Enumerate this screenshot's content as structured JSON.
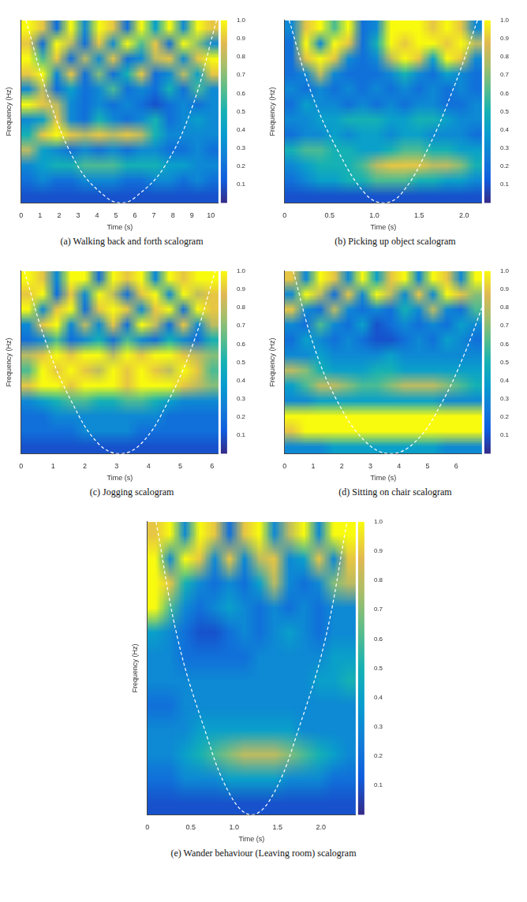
{
  "chart_data": [
    {
      "type": "heatmap",
      "caption": "(a) Walking back and forth scalogram",
      "x_label": "Time (s)",
      "y_label": "Frequency (Hz)",
      "xlim": [
        0,
        10.4
      ],
      "xticks": [
        0,
        1,
        2,
        3,
        4,
        5,
        6,
        7,
        8,
        9,
        10
      ],
      "ylim": [
        0,
        1
      ],
      "tick_labels": "x",
      "cells": [
        [
          1,
          0.9,
          0.2,
          1,
          0.3,
          1,
          0.9,
          0.2,
          1,
          0.4,
          1,
          0.3,
          1,
          0.9
        ],
        [
          0.9,
          0.2,
          1,
          0.8,
          0.2,
          0.9,
          0.3,
          1,
          0.6,
          0.9,
          0.2,
          1,
          0.7,
          0.3
        ],
        [
          1,
          0.6,
          0.9,
          0.2,
          0.8,
          0.3,
          0.9,
          0.2,
          0.3,
          0.8,
          0.9,
          0.3,
          0.9,
          1
        ],
        [
          0.9,
          1,
          0.3,
          0.9,
          0.2,
          0.7,
          0.2,
          0.5,
          0.9,
          0.2,
          0.3,
          0.8,
          0.4,
          0.9
        ],
        [
          0.3,
          0.8,
          0.2,
          0.4,
          0.2,
          0.3,
          0.6,
          0.2,
          0.3,
          0.2,
          0.5,
          0.2,
          0.6,
          0.3
        ],
        [
          1,
          0.9,
          0.8,
          0.3,
          0.2,
          0.3,
          0.2,
          0.3,
          0.2,
          0.1,
          0.2,
          0.3,
          0.2,
          0.3
        ],
        [
          0.3,
          0.4,
          0.9,
          0.3,
          0.2,
          0.5,
          0.3,
          0.2,
          0.3,
          0.5,
          0.2,
          0.3,
          0.4,
          0.3
        ],
        [
          0.5,
          0.9,
          1,
          0.9,
          0.8,
          0.9,
          0.8,
          0.9,
          0.8,
          0.5,
          0.3,
          0.3,
          0.3,
          0.3
        ],
        [
          0.8,
          0.4,
          0.3,
          0.2,
          0.3,
          0.2,
          0.3,
          0.2,
          0.3,
          0.3,
          0.2,
          0.2,
          0.3,
          0.2
        ],
        [
          0.3,
          0.4,
          0.5,
          0.5,
          0.6,
          0.6,
          0.6,
          0.5,
          0.5,
          0.5,
          0.4,
          0.4,
          0.3,
          0.3
        ],
        [
          0.2,
          0.3,
          0.2,
          0.2,
          0.3,
          0.3,
          0.3,
          0.2,
          0.2,
          0.3,
          0.3,
          0.2,
          0.3,
          0.2
        ],
        [
          0.1,
          0.1,
          0.1,
          0.1,
          0.1,
          0.1,
          0.1,
          0.1,
          0.1,
          0.1,
          0.1,
          0.1,
          0.1,
          0.1
        ]
      ],
      "colorbar": {
        "range": [
          0,
          1
        ],
        "ticks": [
          0.1,
          0.2,
          0.3,
          0.4,
          0.5,
          0.6,
          0.7,
          0.8,
          0.9,
          1
        ]
      },
      "coi": {
        "x": [
          0.25,
          1.5,
          3,
          4.5,
          5.3,
          6,
          7.5,
          9,
          10.3
        ],
        "y": [
          1,
          0.56,
          0.2,
          0.03,
          0,
          0.03,
          0.19,
          0.52,
          1
        ],
        "color": "#ffffff",
        "line_style": "dashed"
      }
    },
    {
      "type": "heatmap",
      "caption": "(b) Picking up object scalogram",
      "x_label": "Time (s)",
      "y_label": "Frequency (Hz)",
      "xlim": [
        0,
        2.2
      ],
      "xticks": [
        0,
        0.5,
        1,
        1.5,
        2
      ],
      "ylim": [
        0,
        1
      ],
      "tick_labels": "x",
      "cells": [
        [
          0.3,
          0.9,
          1,
          0.6,
          1,
          0.2,
          0.3,
          1,
          1,
          1,
          0.9,
          1,
          0.9,
          0.3
        ],
        [
          0.2,
          1,
          0.3,
          1,
          0.9,
          0.2,
          0.5,
          1,
          0.9,
          1,
          1,
          0.9,
          1,
          0.8
        ],
        [
          0.2,
          0.9,
          1,
          0.9,
          0.3,
          0.2,
          0.3,
          0.8,
          1,
          0.9,
          0.4,
          1,
          0.9,
          0.3
        ],
        [
          0.2,
          0.3,
          0.8,
          0.3,
          0.2,
          0.2,
          0.2,
          0.3,
          0.5,
          0.3,
          0.2,
          0.4,
          0.3,
          0.2
        ],
        [
          0.3,
          0.2,
          0.3,
          0.2,
          0.3,
          0.2,
          0.3,
          0.2,
          0.3,
          0.2,
          0.3,
          0.2,
          0.3,
          0.2
        ],
        [
          0.2,
          0.4,
          0.3,
          0.3,
          0.2,
          0.3,
          0.2,
          0.3,
          0.2,
          0.3,
          0.3,
          0.2,
          0.2,
          0.3
        ],
        [
          0.3,
          0.3,
          0.4,
          0.4,
          0.5,
          0.5,
          0.5,
          0.4,
          0.4,
          0.5,
          0.5,
          0.4,
          0.3,
          0.3
        ],
        [
          0.2,
          0.3,
          0.3,
          0.4,
          0.3,
          0.4,
          0.4,
          0.3,
          0.4,
          0.4,
          0.3,
          0.3,
          0.3,
          0.2
        ],
        [
          0.5,
          0.6,
          0.6,
          0.5,
          0.5,
          0.4,
          0.4,
          0.5,
          0.6,
          0.6,
          0.5,
          0.5,
          0.4,
          0.4
        ],
        [
          0.3,
          0.4,
          0.5,
          0.5,
          0.5,
          0.6,
          0.8,
          0.9,
          0.9,
          0.9,
          0.8,
          0.8,
          0.7,
          0.5
        ],
        [
          0.2,
          0.3,
          0.4,
          0.4,
          0.5,
          0.5,
          0.6,
          0.6,
          0.6,
          0.5,
          0.5,
          0.4,
          0.4,
          0.3
        ],
        [
          0.1,
          0.1,
          0.1,
          0.1,
          0.1,
          0.1,
          0.1,
          0.1,
          0.1,
          0.1,
          0.1,
          0.1,
          0.1,
          0.1
        ]
      ],
      "colorbar": {
        "range": [
          0,
          1
        ],
        "ticks": [
          0.1,
          0.2,
          0.3,
          0.4,
          0.5,
          0.6,
          0.7,
          0.8,
          0.9,
          1
        ]
      },
      "coi": {
        "x": [
          0.05,
          0.3,
          0.6,
          0.9,
          1.1,
          1.3,
          1.6,
          1.9,
          2.15
        ],
        "y": [
          1,
          0.6,
          0.28,
          0.05,
          0,
          0.05,
          0.3,
          0.65,
          1
        ],
        "color": "#ffffff",
        "line_style": "dashed"
      }
    },
    {
      "type": "heatmap",
      "caption": "(c) Jogging scalogram",
      "x_label": "Time (s)",
      "y_label": "Frequency (Hz)",
      "xlim": [
        0,
        6.2
      ],
      "xticks": [
        0,
        1,
        2,
        3,
        4,
        5,
        6
      ],
      "ylim": [
        0,
        1
      ],
      "tick_labels": "x",
      "cells": [
        [
          1,
          0.9,
          0.3,
          1,
          1,
          0.2,
          1,
          0.9,
          1,
          0.3,
          1,
          0.9,
          1,
          1
        ],
        [
          0.9,
          1,
          0.2,
          0.9,
          0.3,
          1,
          0.8,
          0.2,
          0.9,
          1,
          0.3,
          1,
          0.8,
          0.9
        ],
        [
          1,
          0.3,
          0.9,
          1,
          0.2,
          0.9,
          1,
          0.9,
          0.3,
          0.9,
          1,
          0.2,
          1,
          0.9
        ],
        [
          0.3,
          0.9,
          1,
          0.3,
          0.8,
          0.3,
          0.9,
          0.2,
          1,
          0.8,
          0.2,
          0.9,
          0.3,
          0.8
        ],
        [
          0.2,
          0.3,
          0.6,
          0.2,
          0.3,
          0.5,
          0.2,
          0.6,
          0.3,
          0.2,
          0.5,
          0.3,
          0.2,
          0.5
        ],
        [
          0.8,
          0.9,
          1,
          0.9,
          1,
          1,
          0.8,
          1,
          0.9,
          1,
          1,
          0.9,
          0.8,
          0.7
        ],
        [
          0.6,
          1,
          0.9,
          1,
          0.9,
          0.8,
          1,
          0.9,
          1,
          0.9,
          0.8,
          1,
          0.9,
          0.6
        ],
        [
          0.9,
          1,
          1,
          0.9,
          1,
          1,
          1,
          0.9,
          1,
          1,
          1,
          0.9,
          0.8,
          0.7
        ],
        [
          0.3,
          0.4,
          0.5,
          0.6,
          0.6,
          0.5,
          0.5,
          0.6,
          0.6,
          0.5,
          0.4,
          0.3,
          0.3,
          0.3
        ],
        [
          0.2,
          0.2,
          0.3,
          0.3,
          0.3,
          0.3,
          0.3,
          0.3,
          0.3,
          0.3,
          0.2,
          0.2,
          0.2,
          0.2
        ],
        [
          0.2,
          0.2,
          0.2,
          0.2,
          0.3,
          0.3,
          0.3,
          0.3,
          0.2,
          0.2,
          0.2,
          0.2,
          0.2,
          0.2
        ],
        [
          0.1,
          0.1,
          0.1,
          0.1,
          0.1,
          0.1,
          0.1,
          0.1,
          0.1,
          0.1,
          0.1,
          0.1,
          0.1,
          0.1
        ]
      ],
      "colorbar": {
        "range": [
          0,
          1
        ],
        "ticks": [
          0.1,
          0.2,
          0.3,
          0.4,
          0.5,
          0.6,
          0.7,
          0.8,
          0.9,
          1
        ]
      },
      "coi": {
        "x": [
          0.1,
          0.8,
          1.6,
          2.4,
          3.1,
          3.8,
          4.6,
          5.4,
          6.1
        ],
        "y": [
          1,
          0.6,
          0.28,
          0.06,
          0,
          0.06,
          0.28,
          0.6,
          1
        ],
        "color": "#ffffff",
        "line_style": "dashed"
      }
    },
    {
      "type": "heatmap",
      "caption": "(d) Sitting on chair scalogram",
      "x_label": "Time (s)",
      "y_label": "Frequency (Hz)",
      "xlim": [
        0,
        6.9
      ],
      "xticks": [
        0,
        1,
        2,
        3,
        4,
        5,
        6
      ],
      "ylim": [
        0,
        1
      ],
      "tick_labels": "x",
      "cells": [
        [
          0.9,
          0.3,
          1,
          0.9,
          0.3,
          1,
          0.4,
          0.9,
          1,
          0.3,
          1,
          0.9,
          0.3,
          1
        ],
        [
          0.3,
          1,
          0.8,
          0.2,
          0.9,
          0.3,
          1,
          0.8,
          0.3,
          0.9,
          0.3,
          1,
          0.9,
          0.7
        ],
        [
          0.9,
          0.3,
          0.2,
          0.8,
          0.3,
          0.2,
          0.3,
          0.2,
          0.5,
          0.3,
          0.8,
          0.3,
          0.2,
          0.6
        ],
        [
          0.3,
          0.2,
          0.6,
          0.3,
          0.2,
          0.4,
          0.1,
          0.2,
          0.3,
          0.2,
          0.3,
          0.2,
          0.4,
          0.3
        ],
        [
          0.2,
          0.4,
          0.3,
          0.2,
          0.3,
          0.2,
          0.1,
          0.1,
          0.2,
          0.3,
          0.2,
          0.4,
          0.3,
          0.2
        ],
        [
          0.3,
          0.3,
          0.4,
          0.3,
          0.3,
          0.3,
          0.3,
          0.4,
          0.3,
          0.3,
          0.3,
          0.3,
          0.3,
          0.3
        ],
        [
          0.8,
          0.7,
          0.5,
          0.4,
          0.4,
          0.4,
          0.5,
          0.5,
          0.4,
          0.4,
          0.4,
          0.4,
          0.4,
          0.4
        ],
        [
          0.4,
          0.6,
          0.8,
          0.8,
          0.7,
          0.6,
          0.6,
          0.7,
          0.8,
          0.8,
          0.8,
          0.7,
          0.6,
          0.5
        ],
        [
          0.3,
          0.3,
          0.4,
          0.4,
          0.4,
          0.4,
          0.4,
          0.4,
          0.4,
          0.4,
          0.4,
          0.3,
          0.3,
          0.3
        ],
        [
          1,
          1,
          1,
          1,
          1,
          1,
          1,
          1,
          1,
          1,
          1,
          1,
          1,
          1
        ],
        [
          0.9,
          1,
          1,
          1,
          1,
          1,
          1,
          1,
          1,
          1,
          1,
          1,
          1,
          1
        ],
        [
          0.3,
          0.3,
          0.3,
          0.4,
          0.4,
          0.4,
          0.4,
          0.4,
          0.4,
          0.4,
          0.4,
          0.3,
          0.3,
          0.3
        ]
      ],
      "colorbar": {
        "range": [
          0,
          1
        ],
        "ticks": [
          0.1,
          0.2,
          0.3,
          0.4,
          0.5,
          0.6,
          0.7,
          0.8,
          0.9,
          1
        ]
      },
      "coi": {
        "x": [
          0.3,
          1,
          1.8,
          2.8,
          3.7,
          4.6,
          5.5,
          6.3,
          6.9
        ],
        "y": [
          1,
          0.6,
          0.3,
          0.07,
          0,
          0.07,
          0.28,
          0.55,
          0.8
        ],
        "color": "#ffffff",
        "line_style": "dashed"
      }
    },
    {
      "type": "heatmap",
      "caption": "(e) Wander behaviour (Leaving room) scalogram",
      "x_label": "Time (s)",
      "y_label": "Frequency (Hz)",
      "xlim": [
        0,
        2.4
      ],
      "xticks": [
        0,
        0.5,
        1,
        1.5,
        2
      ],
      "ylim": [
        0,
        1
      ],
      "tick_labels": "x",
      "cells": [
        [
          0.9,
          1,
          0.3,
          1,
          0.9,
          0.2,
          0.9,
          1,
          0.3,
          0.8,
          1,
          0.3,
          1,
          1
        ],
        [
          1,
          0.3,
          1,
          0.9,
          0.3,
          0.9,
          0.3,
          0.8,
          0.9,
          0.3,
          0.4,
          0.9,
          0.3,
          0.9
        ],
        [
          1,
          0.9,
          0.5,
          0.3,
          0.2,
          0.3,
          0.2,
          0.4,
          0.8,
          0.3,
          0.2,
          0.3,
          0.7,
          0.8
        ],
        [
          1,
          0.6,
          0.3,
          0.2,
          0.3,
          0.4,
          0.3,
          0.2,
          0.3,
          0.2,
          0.3,
          0.2,
          0.3,
          0.3
        ],
        [
          0.4,
          0.3,
          0.2,
          0.1,
          0.1,
          0.2,
          0.3,
          0.2,
          0.3,
          0.4,
          0.3,
          0.2,
          0.3,
          0.3
        ],
        [
          0.3,
          0.3,
          0.2,
          0.2,
          0.2,
          0.2,
          0.2,
          0.3,
          0.3,
          0.3,
          0.3,
          0.3,
          0.4,
          0.4
        ],
        [
          0.3,
          0.3,
          0.3,
          0.3,
          0.3,
          0.3,
          0.3,
          0.3,
          0.3,
          0.3,
          0.3,
          0.4,
          0.4,
          0.5
        ],
        [
          0.2,
          0.2,
          0.3,
          0.3,
          0.3,
          0.3,
          0.3,
          0.3,
          0.3,
          0.3,
          0.3,
          0.3,
          0.3,
          0.3
        ],
        [
          0.3,
          0.3,
          0.3,
          0.4,
          0.4,
          0.4,
          0.4,
          0.4,
          0.4,
          0.4,
          0.3,
          0.3,
          0.3,
          0.3
        ],
        [
          0.3,
          0.3,
          0.4,
          0.5,
          0.6,
          0.7,
          0.8,
          0.8,
          0.8,
          0.7,
          0.6,
          0.5,
          0.4,
          0.3
        ],
        [
          0.2,
          0.2,
          0.3,
          0.3,
          0.3,
          0.4,
          0.4,
          0.4,
          0.4,
          0.3,
          0.3,
          0.3,
          0.2,
          0.2
        ],
        [
          0.1,
          0.1,
          0.1,
          0.1,
          0.1,
          0.1,
          0.1,
          0.1,
          0.1,
          0.1,
          0.1,
          0.1,
          0.1,
          0.1
        ]
      ],
      "colorbar": {
        "range": [
          0,
          1
        ],
        "ticks": [
          0.1,
          0.2,
          0.3,
          0.4,
          0.5,
          0.6,
          0.7,
          0.8,
          0.9,
          1
        ]
      },
      "coi": {
        "x": [
          0.1,
          0.35,
          0.65,
          0.95,
          1.2,
          1.45,
          1.75,
          2.05,
          2.3
        ],
        "y": [
          1,
          0.6,
          0.3,
          0.07,
          0,
          0.07,
          0.3,
          0.6,
          1
        ],
        "color": "#ffffff",
        "line_style": "dashed"
      }
    }
  ]
}
